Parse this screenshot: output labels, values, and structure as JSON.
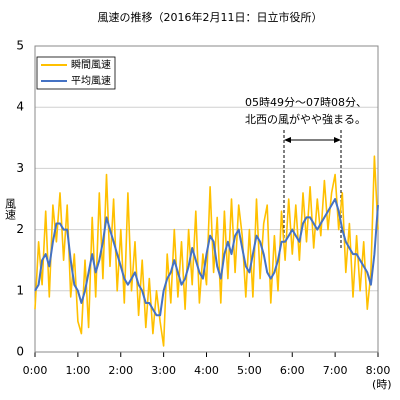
{
  "chart_data": {
    "type": "line",
    "title": "風速の推移（2016年2月11日：日立市役所）",
    "y_label": "風速",
    "x_unit": "(時)",
    "annotations": [
      "05時49分～07時08分、",
      "北西の風がやや強まる。"
    ],
    "x": [
      0,
      5,
      10,
      15,
      20,
      25,
      30,
      35,
      40,
      45,
      50,
      55,
      60,
      65,
      70,
      75,
      80,
      85,
      90,
      95,
      100,
      105,
      110,
      115,
      120,
      125,
      130,
      135,
      140,
      145,
      150,
      155,
      160,
      165,
      170,
      175,
      180,
      185,
      190,
      195,
      200,
      205,
      210,
      215,
      220,
      225,
      230,
      235,
      240,
      245,
      250,
      255,
      260,
      265,
      270,
      275,
      280,
      285,
      290,
      295,
      300,
      305,
      310,
      315,
      320,
      325,
      330,
      335,
      340,
      345,
      350,
      355,
      360,
      365,
      370,
      375,
      380,
      385,
      390,
      395,
      400,
      405,
      410,
      415,
      420,
      425,
      430,
      435,
      440,
      445,
      450,
      455,
      460,
      465,
      470,
      475,
      480
    ],
    "series": [
      {
        "name": "瞬間風速",
        "color": "#ffc000",
        "values": [
          0.7,
          1.8,
          1.1,
          2.3,
          0.9,
          2.4,
          1.8,
          2.6,
          1.5,
          2.4,
          0.9,
          1.6,
          0.5,
          0.3,
          1.5,
          0.4,
          2.2,
          0.9,
          2.6,
          1.2,
          2.9,
          1.4,
          2.5,
          1.0,
          2.0,
          0.8,
          2.6,
          1.0,
          1.8,
          0.6,
          1.5,
          0.4,
          1.2,
          0.3,
          1.0,
          0.5,
          0.1,
          1.6,
          0.8,
          2.0,
          0.9,
          1.8,
          0.7,
          2.0,
          1.1,
          2.3,
          0.8,
          1.6,
          1.1,
          2.7,
          1.3,
          2.2,
          0.8,
          2.3,
          1.2,
          2.5,
          1.3,
          2.4,
          1.9,
          0.9,
          2.0,
          0.9,
          2.5,
          1.2,
          2.1,
          2.4,
          0.8,
          1.9,
          1.0,
          2.3,
          1.5,
          2.5,
          1.6,
          2.4,
          1.5,
          2.6,
          1.8,
          2.7,
          1.7,
          2.5,
          1.9,
          2.8,
          2.0,
          2.6,
          2.9,
          2.0,
          2.6,
          1.3,
          2.1,
          0.9,
          1.9,
          1.0,
          1.8,
          0.7,
          1.3,
          3.2,
          2.0
        ]
      },
      {
        "name": "平均風速",
        "color": "#4472c4",
        "values": [
          1.0,
          1.1,
          1.5,
          1.6,
          1.4,
          1.8,
          2.1,
          2.1,
          2.0,
          2.0,
          1.5,
          1.1,
          1.0,
          0.8,
          1.0,
          1.3,
          1.6,
          1.3,
          1.5,
          1.8,
          2.2,
          2.0,
          1.8,
          1.6,
          1.4,
          1.2,
          1.1,
          1.2,
          1.3,
          1.1,
          1.0,
          0.8,
          0.8,
          0.7,
          0.6,
          0.6,
          1.0,
          1.2,
          1.3,
          1.5,
          1.3,
          1.1,
          1.2,
          1.4,
          1.7,
          1.5,
          1.3,
          1.2,
          1.6,
          1.9,
          1.8,
          1.4,
          1.2,
          1.6,
          1.8,
          1.6,
          1.9,
          2.0,
          1.7,
          1.4,
          1.3,
          1.6,
          1.9,
          1.8,
          1.6,
          1.3,
          1.2,
          1.3,
          1.5,
          1.8,
          1.8,
          1.9,
          2.0,
          1.9,
          1.8,
          2.1,
          2.2,
          2.2,
          2.1,
          2.0,
          2.1,
          2.2,
          2.3,
          2.4,
          2.5,
          2.3,
          2.0,
          1.8,
          1.7,
          1.6,
          1.6,
          1.5,
          1.4,
          1.3,
          1.1,
          1.6,
          2.4
        ]
      }
    ],
    "xlim": [
      0,
      480
    ],
    "xticks": [
      {
        "value": 0,
        "label": "0:00"
      },
      {
        "value": 60,
        "label": "1:00"
      },
      {
        "value": 120,
        "label": "2:00"
      },
      {
        "value": 180,
        "label": "3:00"
      },
      {
        "value": 240,
        "label": "4:00"
      },
      {
        "value": 300,
        "label": "5:00"
      },
      {
        "value": 360,
        "label": "6:00"
      },
      {
        "value": 420,
        "label": "7:00"
      },
      {
        "value": 480,
        "label": "8:00"
      }
    ],
    "ylim": [
      0,
      5
    ],
    "yticks": [
      0,
      1,
      2,
      3,
      4,
      5
    ],
    "grid": true,
    "legend": "top-left"
  }
}
